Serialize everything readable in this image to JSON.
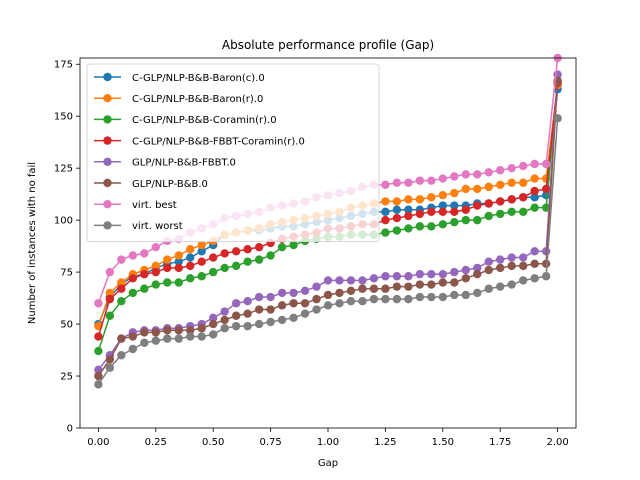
{
  "chart_data": {
    "type": "line",
    "title": "Absolute performance profile (Gap)",
    "xlabel": "Gap",
    "ylabel": "Number of instances with no fail",
    "xlim": [
      -0.08,
      2.08
    ],
    "ylim": [
      0,
      178
    ],
    "xticks": [
      0.0,
      0.25,
      0.5,
      0.75,
      1.0,
      1.25,
      1.5,
      1.75,
      2.0
    ],
    "xtick_labels": [
      "0.00",
      "0.25",
      "0.50",
      "0.75",
      "1.00",
      "1.25",
      "1.50",
      "1.75",
      "2.00"
    ],
    "yticks": [
      0,
      25,
      50,
      75,
      100,
      125,
      150,
      175
    ],
    "ytick_labels": [
      "0",
      "25",
      "50",
      "75",
      "100",
      "125",
      "150",
      "175"
    ],
    "grid": false,
    "legend_position": "top-left",
    "x": [
      0.0,
      0.05,
      0.1,
      0.15,
      0.2,
      0.25,
      0.3,
      0.35,
      0.4,
      0.45,
      0.5,
      0.55,
      0.6,
      0.65,
      0.7,
      0.75,
      0.8,
      0.85,
      0.9,
      0.95,
      1.0,
      1.05,
      1.1,
      1.15,
      1.2,
      1.25,
      1.3,
      1.35,
      1.4,
      1.45,
      1.5,
      1.55,
      1.6,
      1.65,
      1.7,
      1.75,
      1.8,
      1.85,
      1.9,
      1.95,
      2.0
    ],
    "series": [
      {
        "name": "C-GLP/NLP-B&B-Baron(c).0",
        "color": "#1f77b4",
        "values": [
          50,
          63,
          69,
          73,
          74,
          77,
          79,
          80,
          82,
          85,
          88,
          93,
          94,
          95,
          95,
          96,
          97,
          97,
          98,
          99,
          100,
          101,
          102,
          103,
          104,
          104,
          105,
          105,
          105,
          106,
          107,
          107,
          107,
          108,
          108,
          109,
          110,
          111,
          111,
          112,
          163
        ]
      },
      {
        "name": "C-GLP/NLP-B&B-Baron(r).0",
        "color": "#ff7f0e",
        "values": [
          49,
          65,
          70,
          74,
          76,
          78,
          81,
          83,
          86,
          88,
          90,
          93,
          94,
          95,
          96,
          98,
          99,
          100,
          101,
          102,
          103,
          104,
          106,
          107,
          108,
          109,
          109,
          110,
          110,
          111,
          112,
          113,
          115,
          115,
          116,
          117,
          118,
          118,
          120,
          120,
          165
        ]
      },
      {
        "name": "C-GLP/NLP-B&B-Coramin(r).0",
        "color": "#2ca02c",
        "values": [
          37,
          54,
          61,
          65,
          67,
          69,
          70,
          70,
          72,
          73,
          75,
          77,
          78,
          80,
          81,
          83,
          87,
          88,
          90,
          91,
          92,
          92,
          93,
          93,
          93,
          94,
          95,
          96,
          97,
          97,
          98,
          99,
          100,
          100,
          102,
          103,
          104,
          104,
          106,
          106,
          167
        ]
      },
      {
        "name": "C-GLP/NLP-B&B-FBBT-Coramin(r).0",
        "color": "#d62728",
        "values": [
          44,
          62,
          67,
          72,
          74,
          75,
          77,
          77,
          78,
          80,
          82,
          84,
          85,
          86,
          87,
          89,
          91,
          92,
          93,
          94,
          96,
          96,
          97,
          98,
          98,
          100,
          101,
          102,
          103,
          104,
          104,
          104,
          105,
          107,
          108,
          109,
          110,
          111,
          114,
          115,
          166
        ]
      },
      {
        "name": "GLP/NLP-B&B-FBBT.0",
        "color": "#9467bd",
        "values": [
          28,
          35,
          43,
          46,
          47,
          47,
          48,
          48,
          49,
          50,
          53,
          56,
          60,
          61,
          63,
          63,
          65,
          65,
          66,
          68,
          71,
          71,
          71,
          71,
          72,
          73,
          73,
          73,
          74,
          74,
          74,
          75,
          76,
          77,
          80,
          81,
          82,
          82,
          85,
          85,
          170
        ]
      },
      {
        "name": "GLP/NLP-B&B.0",
        "color": "#8c564b",
        "values": [
          25,
          33,
          43,
          44,
          46,
          46,
          47,
          47,
          47,
          48,
          50,
          52,
          54,
          55,
          57,
          57,
          59,
          60,
          60,
          62,
          64,
          65,
          66,
          67,
          67,
          67,
          68,
          68,
          69,
          69,
          70,
          70,
          72,
          74,
          76,
          77,
          78,
          78,
          79,
          79,
          167
        ]
      },
      {
        "name": "virt. best",
        "color": "#e377c2",
        "values": [
          60,
          75,
          81,
          83,
          84,
          87,
          90,
          91,
          94,
          96,
          98,
          101,
          102,
          103,
          104,
          106,
          107,
          108,
          109,
          111,
          112,
          113,
          114,
          116,
          117,
          117,
          118,
          118,
          119,
          119,
          120,
          121,
          122,
          122,
          123,
          124,
          125,
          126,
          127,
          127,
          178
        ]
      },
      {
        "name": "virt. worst",
        "color": "#7f7f7f",
        "values": [
          21,
          29,
          35,
          38,
          41,
          42,
          43,
          43,
          44,
          44,
          45,
          48,
          49,
          49,
          50,
          51,
          52,
          53,
          55,
          57,
          59,
          60,
          61,
          61,
          62,
          62,
          62,
          62,
          63,
          63,
          63,
          64,
          64,
          65,
          67,
          68,
          69,
          71,
          72,
          73,
          149
        ]
      }
    ]
  }
}
